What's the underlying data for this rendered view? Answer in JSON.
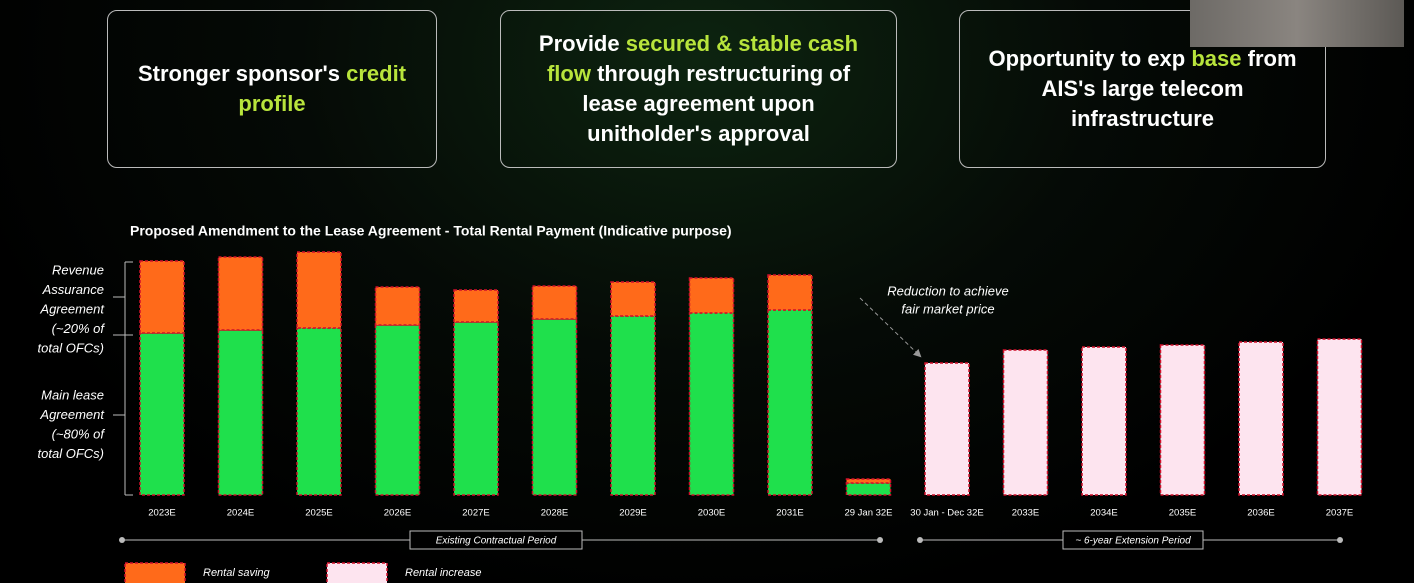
{
  "boxes": [
    {
      "parts": [
        {
          "text": "Stronger sponsor's",
          "accent": false
        },
        {
          "text": "credit profile",
          "accent": true
        }
      ]
    },
    {
      "parts": [
        {
          "text": "Provide",
          "accent": false
        },
        {
          "text": "secured & stable cash flow",
          "accent": true
        },
        {
          "text": "through restructuring of lease agreement upon unitholder's approval",
          "accent": false
        }
      ]
    },
    {
      "parts": [
        {
          "text": "Opportunity to exp",
          "accent": false
        },
        {
          "text": "base",
          "accent": true
        },
        {
          "text": "from AIS's large telecom infrastructure",
          "accent": false
        }
      ]
    }
  ],
  "chart_data": {
    "type": "bar",
    "stacked": true,
    "title": "Proposed Amendment to the Lease Agreement - Total Rental Payment (Indicative purpose)",
    "categories": [
      "2023E",
      "2024E",
      "2025E",
      "2026E",
      "2027E",
      "2028E",
      "2029E",
      "2030E",
      "2031E",
      "29 Jan 32E",
      "30 Jan - Dec 32E",
      "2033E",
      "2034E",
      "2035E",
      "2036E",
      "2037E"
    ],
    "series": [
      {
        "color": "#1fe04c",
        "values": [
          162,
          165,
          167,
          170,
          173,
          176,
          179,
          182,
          185,
          12,
          null,
          null,
          null,
          null,
          null,
          null
        ]
      },
      {
        "name": "Rental saving",
        "color": "#ff6a1a",
        "values": [
          72,
          73,
          76,
          38,
          32,
          33,
          34,
          35,
          35,
          4,
          null,
          null,
          null,
          null,
          null,
          null
        ]
      },
      {
        "name": "Rental increase",
        "color": "#fde4ef",
        "values": [
          null,
          null,
          null,
          null,
          null,
          null,
          null,
          null,
          null,
          null,
          132,
          145,
          148,
          150,
          153,
          156
        ]
      }
    ],
    "left_labels": [
      [
        "Revenue",
        "Assurance",
        "Agreement",
        "(~20% of",
        "total OFCs)"
      ],
      [
        "Main lease",
        "Agreement",
        "(~80% of",
        "total OFCs)"
      ]
    ],
    "annotation": [
      "Reduction to achieve",
      "fair market price"
    ],
    "periods": [
      "Existing Contractual Period",
      "~ 6-year Extension Period"
    ]
  }
}
